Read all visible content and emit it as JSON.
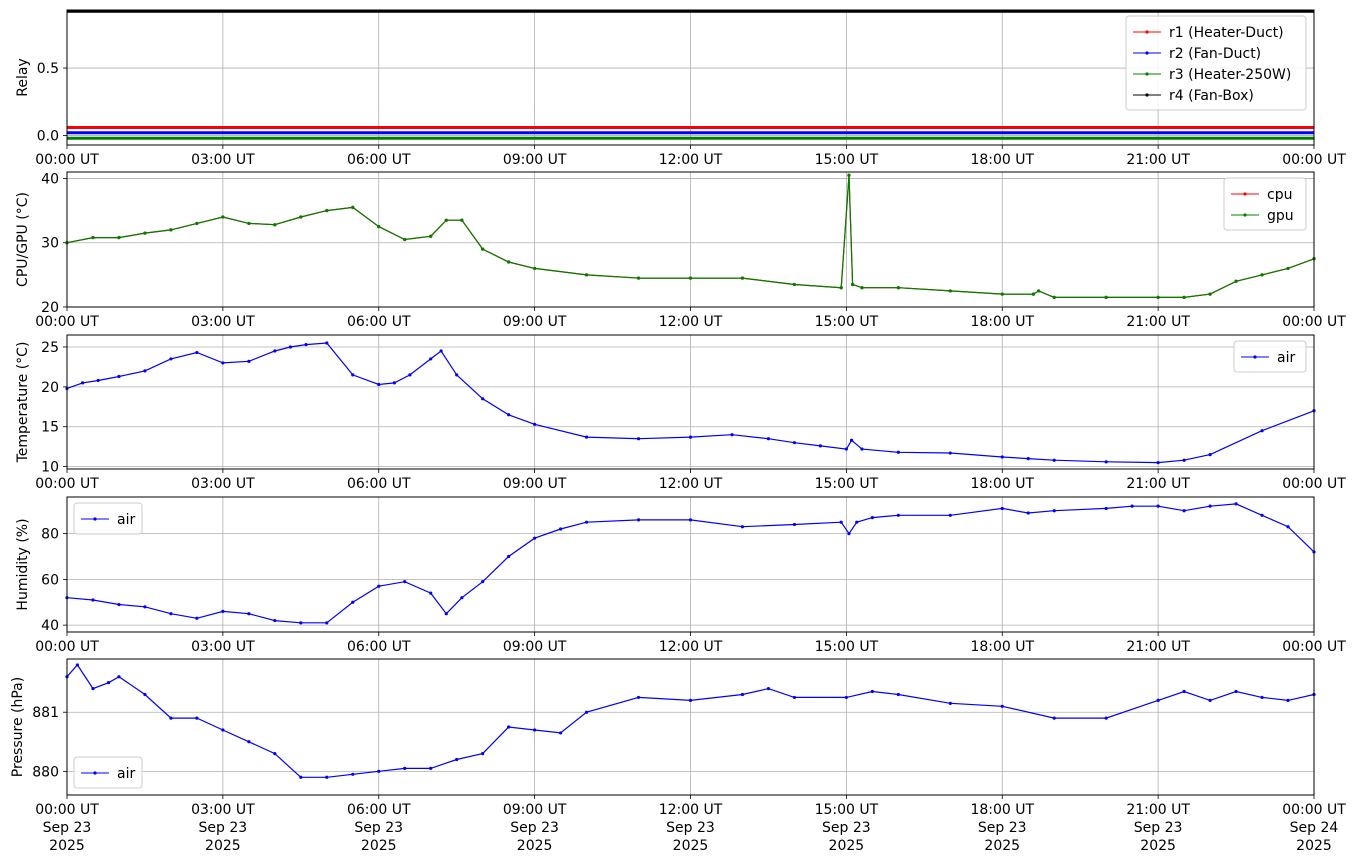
{
  "x_ticks": [
    "00:00 UT",
    "03:00 UT",
    "06:00 UT",
    "09:00 UT",
    "12:00 UT",
    "15:00 UT",
    "18:00 UT",
    "21:00 UT",
    "00:00 UT"
  ],
  "x_dates": [
    "Sep 23",
    "Sep 23",
    "Sep 23",
    "Sep 23",
    "Sep 23",
    "Sep 23",
    "Sep 23",
    "Sep 23",
    "Sep 24"
  ],
  "x_years": [
    "2025",
    "2025",
    "2025",
    "2025",
    "2025",
    "2025",
    "2025",
    "2025",
    "2025"
  ],
  "chart_data": [
    {
      "type": "line",
      "ylabel": "Relay",
      "ylim": [
        -0.07,
        0.93
      ],
      "yticks": [
        "0.0",
        "0.5"
      ],
      "legend_position": "upper-right",
      "series": [
        {
          "name": "r1 (Heater-Duct)",
          "color": "#ff0000",
          "x": [
            0,
            24
          ],
          "y": [
            0.06,
            0.06
          ]
        },
        {
          "name": "r2 (Fan-Duct)",
          "color": "#0000ff",
          "x": [
            0,
            24
          ],
          "y": [
            0.02,
            0.02
          ]
        },
        {
          "name": "r3 (Heater-250W)",
          "color": "#008000",
          "x": [
            0,
            24
          ],
          "y": [
            -0.02,
            -0.02
          ]
        },
        {
          "name": "r4 (Fan-Box)",
          "color": "#000000",
          "x": [
            0,
            24
          ],
          "y": [
            0.92,
            0.92
          ]
        }
      ]
    },
    {
      "type": "line",
      "ylabel": "CPU/GPU (°C)",
      "ylim": [
        20,
        41
      ],
      "yticks": [
        "20",
        "30",
        "40"
      ],
      "legend_position": "upper-right",
      "series": [
        {
          "name": "cpu",
          "color": "#ff0000",
          "x": [
            0,
            0.5,
            1,
            1.5,
            2,
            2.5,
            3,
            3.5,
            4,
            4.5,
            5,
            5.5,
            6,
            6.5,
            7,
            7.3,
            7.6,
            8,
            8.5,
            9,
            10,
            11,
            12,
            13,
            14,
            14.9,
            15.05,
            15.12,
            15.3,
            16,
            17,
            18,
            18.6,
            18.7,
            19,
            20,
            21,
            21.5,
            22,
            22.5,
            23,
            23.5,
            24
          ],
          "y": [
            30,
            30.8,
            30.8,
            31.5,
            32,
            33,
            34,
            33,
            32.8,
            34,
            35,
            35.5,
            32.5,
            30.5,
            31,
            33.5,
            33.5,
            29,
            27,
            26,
            25,
            24.5,
            24.5,
            24.5,
            23.5,
            23,
            40.5,
            23.5,
            23,
            23,
            22.5,
            22,
            22,
            22.5,
            21.5,
            21.5,
            21.5,
            21.5,
            22,
            24,
            25,
            26,
            27.5
          ]
        },
        {
          "name": "gpu",
          "color": "#008000",
          "x": [
            0,
            0.5,
            1,
            1.5,
            2,
            2.5,
            3,
            3.5,
            4,
            4.5,
            5,
            5.5,
            6,
            6.5,
            7,
            7.3,
            7.6,
            8,
            8.5,
            9,
            10,
            11,
            12,
            13,
            14,
            14.9,
            15.05,
            15.12,
            15.3,
            16,
            17,
            18,
            18.6,
            18.7,
            19,
            20,
            21,
            21.5,
            22,
            22.5,
            23,
            23.5,
            24
          ],
          "y": [
            30,
            30.8,
            30.8,
            31.5,
            32,
            33,
            34,
            33,
            32.8,
            34,
            35,
            35.5,
            32.5,
            30.5,
            31,
            33.5,
            33.5,
            29,
            27,
            26,
            25,
            24.5,
            24.5,
            24.5,
            23.5,
            23,
            40.5,
            23.5,
            23,
            23,
            22.5,
            22,
            22,
            22.5,
            21.5,
            21.5,
            21.5,
            21.5,
            22,
            24,
            25,
            26,
            27.5
          ]
        }
      ]
    },
    {
      "type": "line",
      "ylabel": "Temperature (°C)",
      "ylim": [
        9.7,
        26.5
      ],
      "yticks": [
        "10",
        "15",
        "20",
        "25"
      ],
      "legend_position": "upper-right",
      "series": [
        {
          "name": "air",
          "color": "#0000ff",
          "x": [
            0,
            0.3,
            0.6,
            1,
            1.5,
            2,
            2.5,
            3,
            3.5,
            4,
            4.3,
            4.6,
            5,
            5.5,
            6,
            6.3,
            6.6,
            7,
            7.2,
            7.5,
            8,
            8.5,
            9,
            10,
            11,
            12,
            12.8,
            13.5,
            14,
            14.5,
            15,
            15.1,
            15.3,
            16,
            17,
            18,
            18.5,
            19,
            20,
            21,
            21.5,
            22,
            23,
            24
          ],
          "y": [
            19.8,
            20.5,
            20.8,
            21.3,
            22,
            23.5,
            24.3,
            23,
            23.2,
            24.5,
            25,
            25.3,
            25.5,
            21.5,
            20.3,
            20.5,
            21.5,
            23.5,
            24.5,
            21.5,
            18.5,
            16.5,
            15.3,
            13.7,
            13.5,
            13.7,
            14,
            13.5,
            13,
            12.6,
            12.2,
            13.3,
            12.2,
            11.8,
            11.7,
            11.2,
            11,
            10.8,
            10.6,
            10.5,
            10.8,
            11.5,
            14.5,
            17
          ]
        }
      ]
    },
    {
      "type": "line",
      "ylabel": "Humidity (%)",
      "ylim": [
        37,
        96
      ],
      "yticks": [
        "40",
        "60",
        "80"
      ],
      "legend_position": "upper-left",
      "series": [
        {
          "name": "air",
          "color": "#0000ff",
          "x": [
            0,
            0.5,
            1,
            1.5,
            2,
            2.5,
            3,
            3.5,
            4,
            4.5,
            5,
            5.5,
            6,
            6.5,
            7,
            7.3,
            7.6,
            8,
            8.5,
            9,
            9.5,
            10,
            11,
            12,
            13,
            14,
            14.9,
            15.05,
            15.2,
            15.5,
            16,
            17,
            18,
            18.5,
            19,
            20,
            20.5,
            21,
            21.5,
            22,
            22.5,
            23,
            23.5,
            24
          ],
          "y": [
            52,
            51,
            49,
            48,
            45,
            43,
            46,
            45,
            42,
            41,
            41,
            50,
            57,
            59,
            54,
            45,
            52,
            59,
            70,
            78,
            82,
            85,
            86,
            86,
            83,
            84,
            85,
            80,
            85,
            87,
            88,
            88,
            91,
            89,
            90,
            91,
            92,
            92,
            90,
            92,
            93,
            88,
            83,
            72
          ]
        }
      ]
    },
    {
      "type": "line",
      "ylabel": "Pressure (hPa)",
      "ylim": [
        879.6,
        881.9
      ],
      "yticks": [
        "880",
        "881"
      ],
      "legend_position": "lower-left",
      "series": [
        {
          "name": "air",
          "color": "#0000ff",
          "x": [
            0,
            0.2,
            0.5,
            0.8,
            1,
            1.5,
            2,
            2.5,
            3,
            3.5,
            4,
            4.5,
            5,
            5.5,
            6,
            6.5,
            7,
            7.5,
            8,
            8.5,
            9,
            9.5,
            10,
            11,
            12,
            13,
            13.5,
            14,
            15,
            15.5,
            16,
            17,
            18,
            19,
            20,
            21,
            21.5,
            22,
            22.5,
            23,
            23.5,
            24
          ],
          "y": [
            881.6,
            881.8,
            881.4,
            881.5,
            881.6,
            881.3,
            880.9,
            880.9,
            880.7,
            880.5,
            880.3,
            879.9,
            879.9,
            879.95,
            880,
            880.05,
            880.05,
            880.2,
            880.3,
            880.75,
            880.7,
            880.65,
            881,
            881.25,
            881.2,
            881.3,
            881.4,
            881.25,
            881.25,
            881.35,
            881.3,
            881.15,
            881.1,
            880.9,
            880.9,
            881.2,
            881.35,
            881.2,
            881.35,
            881.25,
            881.2,
            881.3
          ]
        }
      ]
    }
  ]
}
